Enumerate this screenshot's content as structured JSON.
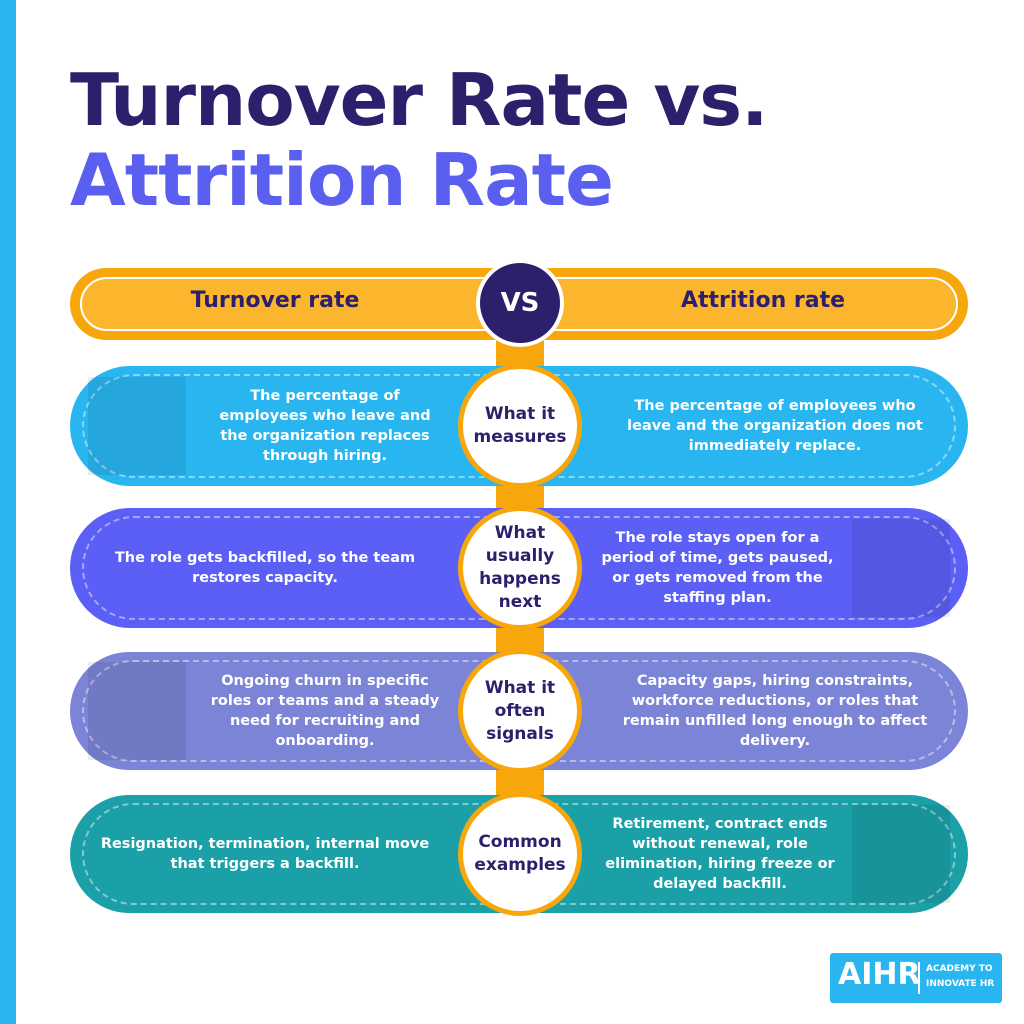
{
  "title": {
    "line1": "Turnover Rate vs.",
    "line2": "Attrition Rate"
  },
  "header": {
    "left": "Turnover rate",
    "center": "VS",
    "right": "Attrition rate"
  },
  "rows": [
    {
      "label": "What it measures",
      "left": "The percentage of employees who leave and the organization replaces through hiring.",
      "right": "The percentage of employees who leave and the organization does not immediately replace."
    },
    {
      "label": "What usually happens next",
      "left": "The role gets backfilled, so the team restores capacity.",
      "right": "The role stays open for a period of time, gets paused, or gets removed from the staffing plan."
    },
    {
      "label": "What it often signals",
      "left": "Ongoing churn in specific roles or teams and a steady need for recruiting and onboarding.",
      "right": "Capacity gaps, hiring constraints, workforce reductions, or roles that remain unfilled long enough to affect delivery."
    },
    {
      "label": "Common examples",
      "left": "Resignation, termination, internal move that triggers a backfill.",
      "right": "Retirement, contract ends without renewal, role elimination, hiring freeze or delayed backfill."
    }
  ],
  "logo": {
    "mark": "AIHR",
    "text": "ACADEMY TO INNOVATE HR"
  }
}
